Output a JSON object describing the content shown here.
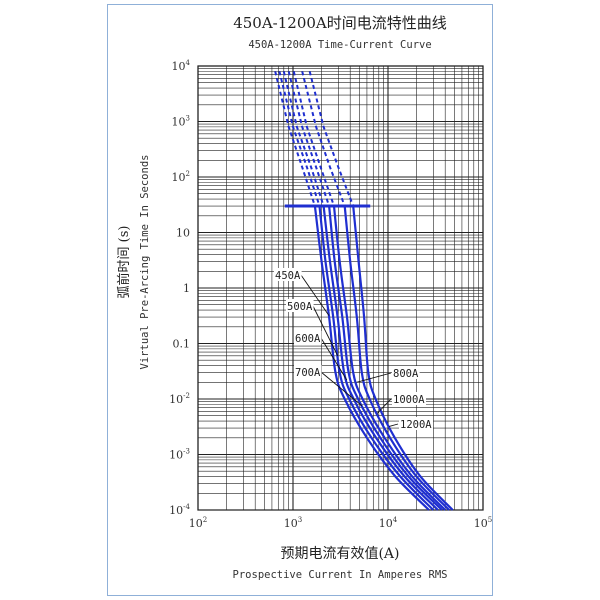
{
  "chart_data": {
    "type": "line",
    "title": "450A-1200A时间电流特性曲线",
    "subtitle": "450A-1200A Time-Current Curve",
    "xlabel_cn": "预期电流有效值(A)",
    "xlabel": "Prospective Current In Amperes RMS",
    "ylabel_cn": "弧前时间 (s)",
    "ylabel": "Virtual Pre-Arcing Time In Seconds",
    "x_scale": "log",
    "y_scale": "log",
    "xlim": [
      100,
      100000
    ],
    "ylim": [
      0.0001,
      10000
    ],
    "grid": true,
    "x_ticks": [
      {
        "base": "10",
        "exp": "2"
      },
      {
        "base": "10",
        "exp": "3"
      },
      {
        "base": "10",
        "exp": "4"
      },
      {
        "base": "10",
        "exp": "5"
      }
    ],
    "y_ticks": [
      {
        "base": "10",
        "exp": "4"
      },
      {
        "base": "10",
        "exp": "3"
      },
      {
        "base": "10",
        "exp": "2"
      },
      {
        "base": "10",
        "exp": ""
      },
      {
        "base": "1",
        "exp": ""
      },
      {
        "base": "0.1",
        "exp": ""
      },
      {
        "base": "10",
        "exp": "-2"
      },
      {
        "base": "10",
        "exp": "-3"
      },
      {
        "base": "10",
        "exp": "-4"
      }
    ],
    "cutoff_time": 30,
    "series": [
      {
        "name": "450A",
        "points": [
          [
            1700,
            30
          ],
          [
            2000,
            3
          ],
          [
            2400,
            0.3
          ],
          [
            2800,
            0.03
          ],
          [
            3500,
            0.01
          ],
          [
            6000,
            0.002
          ],
          [
            12000,
            0.0004
          ],
          [
            27000,
            0.0001
          ]
        ]
      },
      {
        "name": "500A",
        "points": [
          [
            1900,
            30
          ],
          [
            2200,
            3
          ],
          [
            2650,
            0.3
          ],
          [
            3100,
            0.03
          ],
          [
            3900,
            0.01
          ],
          [
            6700,
            0.002
          ],
          [
            13500,
            0.0004
          ],
          [
            30000,
            0.0001
          ]
        ]
      },
      {
        "name": "600A",
        "points": [
          [
            2100,
            30
          ],
          [
            2450,
            3
          ],
          [
            2950,
            0.3
          ],
          [
            3450,
            0.03
          ],
          [
            4350,
            0.01
          ],
          [
            7500,
            0.002
          ],
          [
            15000,
            0.0004
          ],
          [
            33500,
            0.0001
          ]
        ]
      },
      {
        "name": "700A",
        "points": [
          [
            2400,
            30
          ],
          [
            2750,
            3
          ],
          [
            3300,
            0.3
          ],
          [
            3850,
            0.03
          ],
          [
            4850,
            0.01
          ],
          [
            8300,
            0.002
          ],
          [
            16500,
            0.0004
          ],
          [
            37000,
            0.0001
          ]
        ]
      },
      {
        "name": "800A",
        "points": [
          [
            2700,
            30
          ],
          [
            3100,
            3
          ],
          [
            3700,
            0.3
          ],
          [
            4300,
            0.03
          ],
          [
            5400,
            0.01
          ],
          [
            9200,
            0.002
          ],
          [
            18000,
            0.0004
          ],
          [
            40000,
            0.0001
          ]
        ]
      },
      {
        "name": "1000A",
        "points": [
          [
            3500,
            30
          ],
          [
            4000,
            3
          ],
          [
            4700,
            0.3
          ],
          [
            5300,
            0.03
          ],
          [
            6400,
            0.01
          ],
          [
            10500,
            0.002
          ],
          [
            20000,
            0.0004
          ],
          [
            44000,
            0.0001
          ]
        ]
      },
      {
        "name": "1200A",
        "points": [
          [
            4300,
            30
          ],
          [
            4900,
            3
          ],
          [
            5600,
            0.3
          ],
          [
            6200,
            0.03
          ],
          [
            7400,
            0.01
          ],
          [
            11800,
            0.002
          ],
          [
            22000,
            0.0004
          ],
          [
            48000,
            0.0001
          ]
        ]
      }
    ],
    "dashed_extension": [
      {
        "name": "450A",
        "points": [
          [
            650,
            8000
          ],
          [
            900,
            800
          ],
          [
            1250,
            150
          ],
          [
            1700,
            30
          ]
        ]
      },
      {
        "name": "500A",
        "points": [
          [
            720,
            8000
          ],
          [
            1000,
            800
          ],
          [
            1400,
            150
          ],
          [
            1900,
            30
          ]
        ]
      },
      {
        "name": "600A",
        "points": [
          [
            800,
            8000
          ],
          [
            1100,
            800
          ],
          [
            1550,
            150
          ],
          [
            2100,
            30
          ]
        ]
      },
      {
        "name": "700A",
        "points": [
          [
            900,
            8000
          ],
          [
            1250,
            800
          ],
          [
            1750,
            150
          ],
          [
            2400,
            30
          ]
        ]
      },
      {
        "name": "800A",
        "points": [
          [
            1020,
            8000
          ],
          [
            1400,
            800
          ],
          [
            1950,
            150
          ],
          [
            2700,
            30
          ]
        ]
      },
      {
        "name": "1000A",
        "points": [
          [
            1250,
            8000
          ],
          [
            1750,
            800
          ],
          [
            2450,
            150
          ],
          [
            3500,
            30
          ]
        ]
      },
      {
        "name": "1200A",
        "points": [
          [
            1500,
            8000
          ],
          [
            2100,
            800
          ],
          [
            3000,
            150
          ],
          [
            4300,
            30
          ]
        ]
      }
    ],
    "line_color": "#1f2fd0"
  }
}
